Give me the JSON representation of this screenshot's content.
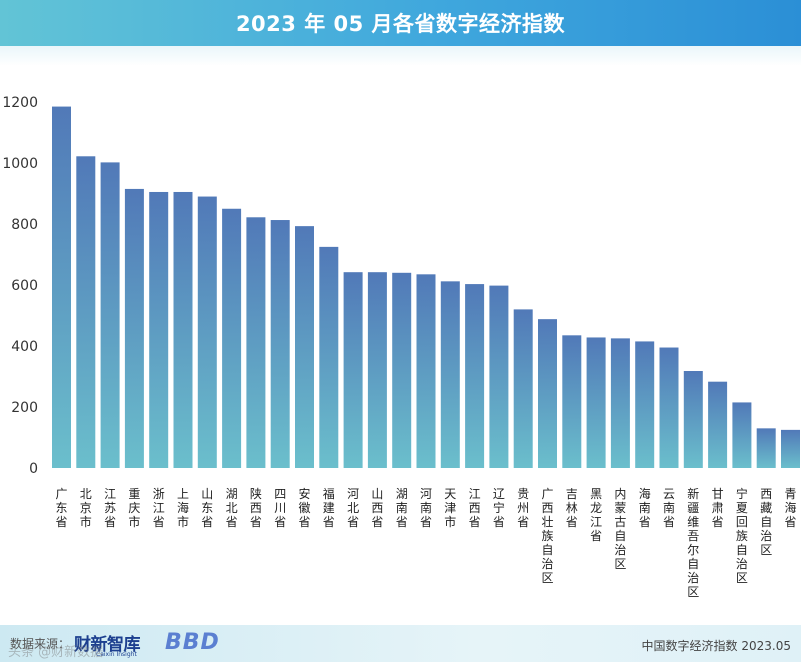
{
  "header": {
    "title": "2023 年 05 月各省数字经济指数"
  },
  "footer": {
    "source_label": "数据来源：",
    "brand": "财新智库",
    "brand_sub": "Caixin Insight",
    "logo2": "BBD",
    "note": "中国数字经济指数 2023.05",
    "watermark": "头条 @财新数据"
  },
  "chart_data": {
    "type": "bar",
    "title": "2023 年 05 月各省数字经济指数",
    "xlabel": "",
    "ylabel": "",
    "ylim": [
      0,
      1250
    ],
    "yticks": [
      0,
      200,
      400,
      600,
      800,
      1000,
      1200
    ],
    "grid": false,
    "categories": [
      "广东省",
      "北京市",
      "江苏省",
      "重庆市",
      "浙江省",
      "上海市",
      "山东省",
      "湖北省",
      "陕西省",
      "四川省",
      "安徽省",
      "福建省",
      "河北省",
      "山西省",
      "湖南省",
      "河南省",
      "天津市",
      "江西省",
      "辽宁省",
      "贵州省",
      "广西壮族自治区",
      "吉林省",
      "黑龙江省",
      "内蒙古自治区",
      "海南省",
      "云南省",
      "新疆维吾尔自治区",
      "甘肃省",
      "宁夏回族自治区",
      "西藏自治区",
      "青海省"
    ],
    "values": [
      1185,
      1022,
      1002,
      915,
      905,
      905,
      890,
      850,
      822,
      813,
      793,
      725,
      642,
      642,
      640,
      635,
      612,
      603,
      598,
      520,
      488,
      435,
      428,
      425,
      415,
      395,
      318,
      283,
      215,
      130,
      125
    ],
    "colors": {
      "bar_top": "#5179b8",
      "bar_bottom": "#6bbfcc"
    }
  }
}
